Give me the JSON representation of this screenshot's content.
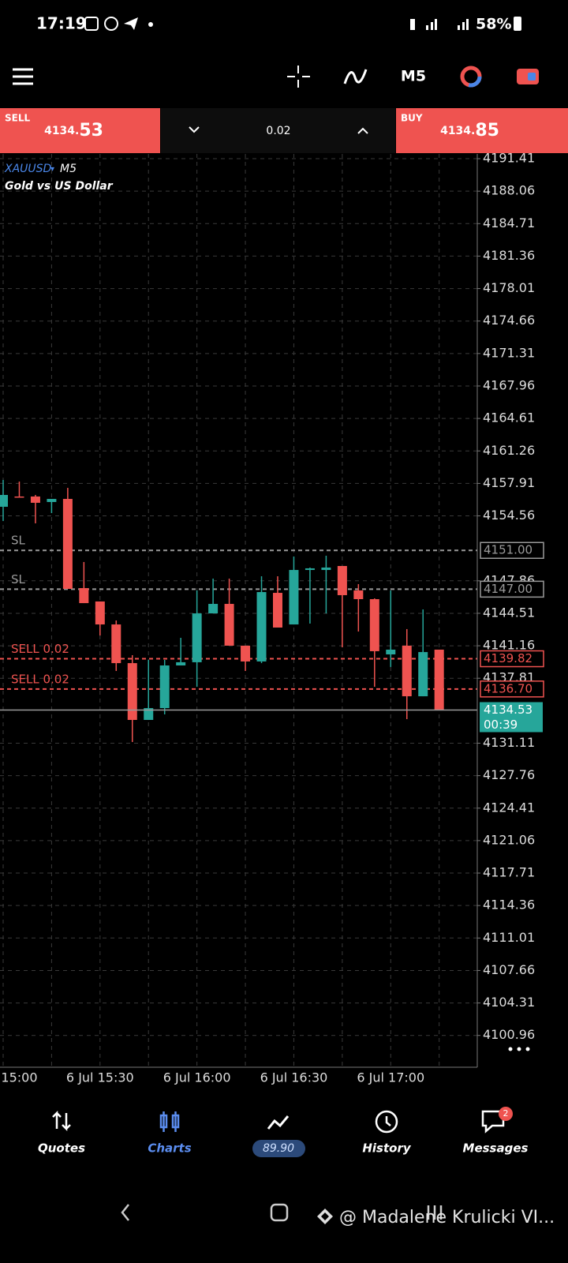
{
  "status_bar": {
    "time": "17:19",
    "battery": "58%"
  },
  "toolbar": {
    "timeframe": "M5"
  },
  "trade_bar": {
    "sell_label": "SELL",
    "sell_price_main": "4134.",
    "sell_price_big": "53",
    "volume": "0.02",
    "buy_label": "BUY",
    "buy_price_main": "4134.",
    "buy_price_big": "85"
  },
  "chart_data": {
    "type": "candlestick",
    "symbol": "XAUUSD",
    "timeframe": "M5",
    "description": "Gold vs US Dollar",
    "categories": [
      null,
      "15:00",
      null,
      null,
      null,
      null,
      "6 Jul 15:30",
      null,
      null,
      null,
      null,
      null,
      "6 Jul 16:00",
      null,
      null,
      null,
      null,
      null,
      "6 Jul 16:30",
      null,
      null,
      null,
      null,
      null,
      "6 Jul 17:00",
      null,
      null,
      null
    ],
    "open": [
      4155.5,
      4156.56,
      4156.56,
      4155.99,
      4156.31,
      4147.11,
      4145.73,
      4143.36,
      4139.37,
      4133.51,
      4134.73,
      4139.13,
      4139.46,
      4144.5,
      4145.48,
      4141.17,
      4139.54,
      4146.62,
      4143.36,
      4148.98,
      4148.98,
      4149.39,
      4146.87,
      4145.97,
      4140.27,
      4141.17,
      4135.95,
      4140.76
    ],
    "high": [
      4158.27,
      4158.1,
      4156.72,
      4156.31,
      4157.45,
      4149.8,
      4145.73,
      4143.77,
      4140.19,
      4139.7,
      4139.7,
      4141.98,
      4146.87,
      4148.09,
      4148.09,
      4141.17,
      4148.33,
      4148.33,
      4150.37,
      4149.23,
      4150.45,
      4149.39,
      4147.52,
      4146.05,
      4146.87,
      4142.88,
      4144.91,
      4140.76
    ],
    "low": [
      4154.03,
      4156.48,
      4153.79,
      4154.85,
      4147.03,
      4145.56,
      4142.22,
      4138.56,
      4131.23,
      4133.51,
      4134.08,
      4139.13,
      4136.93,
      4144.5,
      4141.17,
      4138.56,
      4139.37,
      4143.04,
      4143.36,
      4143.45,
      4144.5,
      4141.0,
      4142.63,
      4136.93,
      4138.97,
      4133.59,
      4135.95,
      4134.49
    ],
    "close": [
      4156.72,
      4156.48,
      4155.91,
      4156.31,
      4147.03,
      4145.56,
      4143.36,
      4139.37,
      4133.51,
      4134.73,
      4139.13,
      4139.46,
      4144.5,
      4145.48,
      4141.17,
      4139.54,
      4146.7,
      4143.04,
      4148.98,
      4149.15,
      4149.23,
      4146.38,
      4145.97,
      4140.6,
      4140.76,
      4135.95,
      4140.51,
      4134.53
    ],
    "up_color": "#26a69a",
    "down_color": "#ef5350",
    "ylim": [
      4097.68,
      4191.9
    ],
    "yticks": [
      4191.41,
      4188.06,
      4184.71,
      4181.36,
      4178.01,
      4174.66,
      4171.31,
      4167.96,
      4164.61,
      4161.26,
      4157.91,
      4154.56,
      4147.86,
      4144.51,
      4141.16,
      4137.81,
      4131.11,
      4127.76,
      4124.41,
      4121.06,
      4117.71,
      4114.36,
      4111.01,
      4107.66,
      4104.31,
      4100.96
    ],
    "grid": true,
    "levels": [
      {
        "name": "SL",
        "value": 4151,
        "label": "4151.00",
        "color": "#9a9a9a"
      },
      {
        "name": "SL",
        "value": 4147,
        "label": "4147.00",
        "color": "#9a9a9a"
      },
      {
        "name": "SELL 0.02",
        "value": 4139.82,
        "label": "4139.82",
        "color": "#ef5350"
      },
      {
        "name": "SELL 0.02",
        "value": 4136.7,
        "label": "4136.70",
        "color": "#ef5350"
      }
    ],
    "current": {
      "value": 4134.53,
      "countdown": "00:39",
      "color": "#26a69a"
    }
  },
  "bottom_nav": {
    "items": [
      {
        "label": "Quotes"
      },
      {
        "label": "Charts"
      },
      {
        "label": "89.90"
      },
      {
        "label": "History"
      },
      {
        "label": "Messages",
        "badge": 2
      }
    ]
  },
  "system_nav": {
    "watermark": "@ Madalene Krulicki VI..."
  }
}
